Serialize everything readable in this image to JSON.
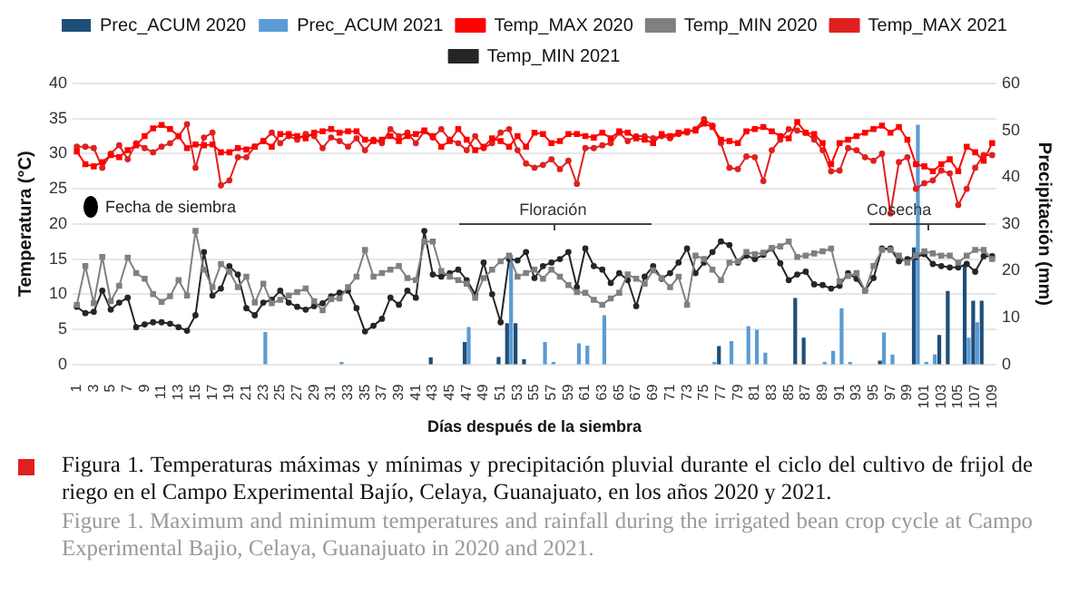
{
  "chart_data": {
    "type": "bar",
    "xlabel": "Días después de la siembra",
    "ylabel": "Temperatura (°C)",
    "y2label": "Precipitación (mm)",
    "categories": [
      "1",
      null,
      "3",
      null,
      "5",
      null,
      "7",
      null,
      "9",
      null,
      "11",
      null,
      "13",
      null,
      "15",
      null,
      "17",
      null,
      "19",
      null,
      "21",
      null,
      "23",
      null,
      "25",
      null,
      "27",
      null,
      "29",
      null,
      "31",
      null,
      "33",
      null,
      "35",
      null,
      "37",
      null,
      "39",
      null,
      "41",
      null,
      "43",
      null,
      "45",
      null,
      "47",
      null,
      "49",
      null,
      "51",
      null,
      "53",
      null,
      "55",
      null,
      "57",
      null,
      "59",
      null,
      "61",
      null,
      "63",
      null,
      "65",
      null,
      "67",
      null,
      "69",
      null,
      "71",
      null,
      "73",
      null,
      "75",
      null,
      "77",
      null,
      "79",
      null,
      "81",
      null,
      "83",
      null,
      "85",
      null,
      "87",
      null,
      "89",
      null,
      "91",
      null,
      "93",
      null,
      "95",
      null,
      "97",
      null,
      "99",
      null,
      "101",
      null,
      "103",
      null,
      "105",
      null,
      "107",
      null,
      "109"
    ],
    "ylim": [
      0,
      40
    ],
    "yticks": [
      0,
      5,
      10,
      15,
      20,
      25,
      30,
      35,
      40
    ],
    "y2lim": [
      0,
      60
    ],
    "y2ticks": [
      0,
      10,
      20,
      30,
      40,
      50,
      60
    ],
    "grid": "y",
    "legend": "top",
    "series": [
      {
        "name": "Prec_ACUM 2020",
        "axis": "y2",
        "color": "#1f4e79",
        "values": [
          null,
          null,
          null,
          null,
          null,
          null,
          null,
          null,
          null,
          null,
          null,
          null,
          null,
          null,
          null,
          null,
          null,
          null,
          null,
          null,
          null,
          null,
          null,
          null,
          null,
          null,
          null,
          null,
          null,
          null,
          null,
          null,
          null,
          null,
          null,
          null,
          null,
          null,
          null,
          null,
          null,
          null,
          1.5,
          null,
          null,
          null,
          4.8,
          null,
          null,
          null,
          1.6,
          8.8,
          8.8,
          1.1,
          null,
          null,
          null,
          null,
          null,
          null,
          null,
          null,
          null,
          null,
          null,
          null,
          null,
          null,
          null,
          null,
          null,
          null,
          null,
          null,
          null,
          null,
          3.9,
          null,
          null,
          null,
          null,
          null,
          null,
          null,
          null,
          14.2,
          5.7,
          null,
          null,
          null,
          null,
          null,
          null,
          null,
          null,
          0.8,
          null,
          null,
          null,
          25,
          null,
          null,
          6.3,
          15.7,
          null,
          21.4,
          13.6,
          13.6,
          null
        ]
      },
      {
        "name": "Prec_ACUM 2021",
        "axis": "y2",
        "color": "#5b9bd5",
        "values": [
          null,
          null,
          null,
          null,
          null,
          null,
          null,
          null,
          null,
          null,
          null,
          null,
          null,
          null,
          null,
          null,
          null,
          null,
          null,
          null,
          null,
          null,
          6.9,
          null,
          null,
          null,
          null,
          null,
          null,
          null,
          null,
          0.5,
          null,
          null,
          null,
          null,
          null,
          null,
          null,
          null,
          null,
          null,
          null,
          null,
          null,
          null,
          8,
          null,
          null,
          null,
          null,
          23.4,
          null,
          null,
          null,
          4.8,
          0.5,
          null,
          null,
          4.5,
          4,
          null,
          10.5,
          null,
          null,
          null,
          null,
          null,
          null,
          null,
          null,
          null,
          null,
          null,
          null,
          0.5,
          null,
          5,
          null,
          8.2,
          7.4,
          2.5,
          null,
          null,
          null,
          null,
          null,
          null,
          0.5,
          2.9,
          12,
          0.5,
          null,
          null,
          null,
          6.8,
          2.1,
          null,
          null,
          51.2,
          0.5,
          2.1,
          null,
          null,
          null,
          5.7,
          9,
          null,
          null
        ]
      },
      {
        "name": "Temp_MAX 2020",
        "type": "line",
        "marker": "square",
        "color": "#ff0000",
        "values": [
          30.3,
          28.5,
          28.2,
          28.8,
          29.8,
          29.5,
          30.5,
          31.2,
          32.5,
          33.6,
          34.1,
          33.5,
          32.5,
          30.8,
          31.3,
          31.2,
          31.3,
          30.2,
          30.2,
          30.8,
          30.6,
          31,
          31.8,
          31,
          32.8,
          32.8,
          32.5,
          32.2,
          33,
          33.2,
          33.5,
          33,
          33.2,
          33.2,
          32,
          31.8,
          32,
          32.5,
          31.8,
          32.5,
          32.8,
          33.3,
          32.5,
          31,
          31.8,
          33.5,
          32,
          30.5,
          31,
          32.2,
          31.8,
          31,
          32.5,
          31,
          33,
          32.8,
          31.5,
          31.8,
          32.8,
          32.8,
          32.5,
          32.3,
          33,
          32.2,
          33.2,
          33,
          32.2,
          32,
          31.5,
          32.8,
          32.5,
          33,
          33.2,
          33.3,
          34.3,
          33.8,
          32,
          31.8,
          31.5,
          33.2,
          33.5,
          33.8,
          33.2,
          32.5,
          32.2,
          34.5,
          33,
          32.8,
          31.5,
          28.5,
          31.5,
          32,
          32.5,
          33,
          33.5,
          34,
          33,
          33.8,
          32,
          28.5,
          28.2,
          27.5,
          28.5,
          29.2,
          27.5,
          31,
          30.2,
          29,
          31.5
        ]
      },
      {
        "name": "Temp_MIN 2020",
        "type": "line",
        "marker": "square",
        "color": "#808080",
        "values": [
          8.5,
          14,
          8.7,
          15.3,
          9,
          11.2,
          15.2,
          13,
          12.2,
          10,
          8.9,
          9.7,
          12,
          9.8,
          19,
          13.5,
          11,
          14.3,
          13.2,
          11,
          12.5,
          8.8,
          11.5,
          8.7,
          9.2,
          9.8,
          10.3,
          10.8,
          9,
          7.7,
          9.3,
          9.4,
          11,
          12.5,
          16.3,
          12.5,
          13,
          13.5,
          14,
          12.3,
          12,
          17.5,
          17.5,
          13.3,
          12.5,
          12,
          11.5,
          9.5,
          12.3,
          13.5,
          14.7,
          15.5,
          12.5,
          13,
          13.5,
          12.2,
          13.5,
          12.5,
          11.3,
          10.3,
          10.2,
          9.2,
          8.5,
          9.4,
          10.2,
          12.8,
          12.2,
          11.5,
          13.4,
          12.3,
          11,
          12.5,
          8.5,
          15.5,
          15,
          13.5,
          12,
          14.5,
          14.7,
          16,
          15.7,
          15.9,
          16.6,
          16.8,
          17.5,
          15.3,
          15.5,
          15.8,
          16.1,
          16.5,
          11.8,
          12.6,
          13,
          10.5,
          14,
          16.3,
          16.3,
          15.5,
          14.5,
          15.5,
          16.1,
          15.8,
          15.5,
          15.5,
          14.5,
          15.5,
          16.3,
          16.3,
          15
        ]
      },
      {
        "name": "Temp_MAX 2021",
        "type": "line",
        "marker": "circle",
        "color": "#e02020",
        "values": [
          31,
          31,
          30.8,
          28,
          30,
          31.2,
          29.2,
          31.5,
          30.8,
          30.2,
          31,
          31.5,
          32.5,
          34.2,
          28,
          32.3,
          33,
          25.5,
          26.2,
          29.5,
          29.5,
          31,
          31.8,
          33,
          31.5,
          32.5,
          32,
          32.8,
          32.5,
          30.8,
          32.3,
          31.8,
          31,
          32.2,
          30.5,
          32,
          31.5,
          33.5,
          32.5,
          33,
          31.5,
          33.2,
          32.3,
          33.5,
          32,
          31.5,
          30.5,
          32.5,
          30.8,
          31.5,
          33,
          33.5,
          30.5,
          28.6,
          28,
          28.4,
          29.2,
          27.8,
          29,
          25.7,
          30.8,
          30.8,
          31.2,
          31.5,
          33,
          31.8,
          32.5,
          32.5,
          32.2,
          32.5,
          32.2,
          32.8,
          33,
          33.5,
          34.9,
          34,
          31.5,
          28,
          27.8,
          29.6,
          29.5,
          26.1,
          30.5,
          32,
          33.5,
          33.3,
          33,
          32,
          30.5,
          27.5,
          27.6,
          30.8,
          30.5,
          29.5,
          29,
          30,
          21.5,
          28.8,
          29.5,
          25,
          25.8,
          26.2,
          27.6,
          27.2,
          22.7,
          25,
          28,
          29.8,
          29.8
        ]
      },
      {
        "name": "Temp_MIN 2021",
        "type": "line",
        "marker": "circle",
        "color": "#262626",
        "values": [
          8.2,
          7.3,
          7.5,
          10.5,
          7.8,
          8.8,
          9.5,
          5.3,
          5.7,
          6,
          6,
          5.8,
          5.3,
          4.8,
          7,
          16,
          9.8,
          10.8,
          14,
          12.8,
          8,
          7,
          8.8,
          9.2,
          10.5,
          8.8,
          8.2,
          7.8,
          8.3,
          8.7,
          9.7,
          10.2,
          10.5,
          8,
          4.7,
          5.5,
          6.5,
          9.5,
          8.5,
          10.5,
          9.5,
          19,
          12.8,
          12.5,
          13,
          13.5,
          12,
          10,
          14.5,
          10,
          6,
          15,
          14.8,
          16,
          12.3,
          14,
          14.5,
          15,
          16,
          11,
          16.5,
          14,
          13.5,
          11.6,
          13,
          12,
          8.3,
          12.5,
          14,
          12.2,
          13,
          14.5,
          16.5,
          13,
          14.5,
          16,
          17.5,
          17,
          14.5,
          15.5,
          15,
          15.6,
          16.5,
          14.4,
          12,
          12.8,
          13.2,
          11.4,
          11.3,
          10.8,
          11.2,
          13,
          12.2,
          10.5,
          12.3,
          16.5,
          16.5,
          14.7,
          15,
          15.3,
          15.7,
          14.3,
          14,
          13.8,
          13.8,
          14.3,
          13.2,
          15.4,
          15.4
        ]
      }
    ],
    "annotations": [
      "Fecha de siembra",
      "Floración",
      "Cosecha",
      "Figura 1. Temperaturas máximas y mínimas y precipitación pluvial durante el ciclo del cultivo de frijol de riego en el Campo Experimental Bajío, Celaya, Guanajuato, en los años 2020 y 2021.",
      "Figure 1. Maximum and minimum temperatures and rainfall during the irrigated bean crop cycle at Campo Experimental Bajio, Celaya, Guanajuato in 2020 and 2021."
    ]
  }
}
